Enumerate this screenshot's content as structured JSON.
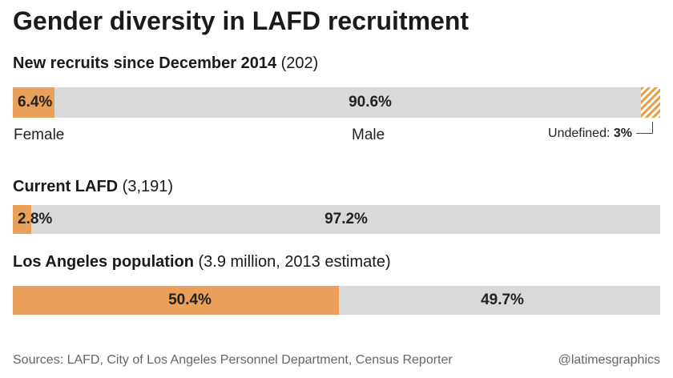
{
  "title": "Gender diversity in LAFD recruitment",
  "colors": {
    "female": "#e8a05b",
    "male": "#d9d9d9",
    "undefined": "#e8a24a"
  },
  "chart_data": [
    {
      "type": "bar",
      "stacked": true,
      "orientation": "horizontal",
      "title_bold": "New recruits since December 2014",
      "title_note": "(202)",
      "series": [
        {
          "name": "Female",
          "value": 6.4,
          "label": "6.4%"
        },
        {
          "name": "Male",
          "value": 90.6,
          "label": "90.6%"
        },
        {
          "name": "Undefined",
          "value": 3,
          "label": "3%"
        }
      ],
      "category_labels": [
        "Female",
        "Male"
      ],
      "undefined_note_prefix": "Undefined:",
      "undefined_note_value": "3%"
    },
    {
      "type": "bar",
      "stacked": true,
      "orientation": "horizontal",
      "title_bold": "Current LAFD",
      "title_note": "(3,191)",
      "series": [
        {
          "value": 2.8,
          "label": "2.8%"
        },
        {
          "value": 97.2,
          "label": "97.2%"
        }
      ]
    },
    {
      "type": "bar",
      "stacked": true,
      "orientation": "horizontal",
      "title_bold": "Los Angeles population",
      "title_note": "(3.9 million, 2013 estimate)",
      "series": [
        {
          "value": 50.4,
          "label": "50.4%"
        },
        {
          "value": 49.7,
          "label": "49.7%"
        }
      ]
    }
  ],
  "footer": {
    "sources": "Sources: LAFD, City of Los Angeles Personnel Department, Census Reporter",
    "credit": "@latimesgraphics"
  }
}
